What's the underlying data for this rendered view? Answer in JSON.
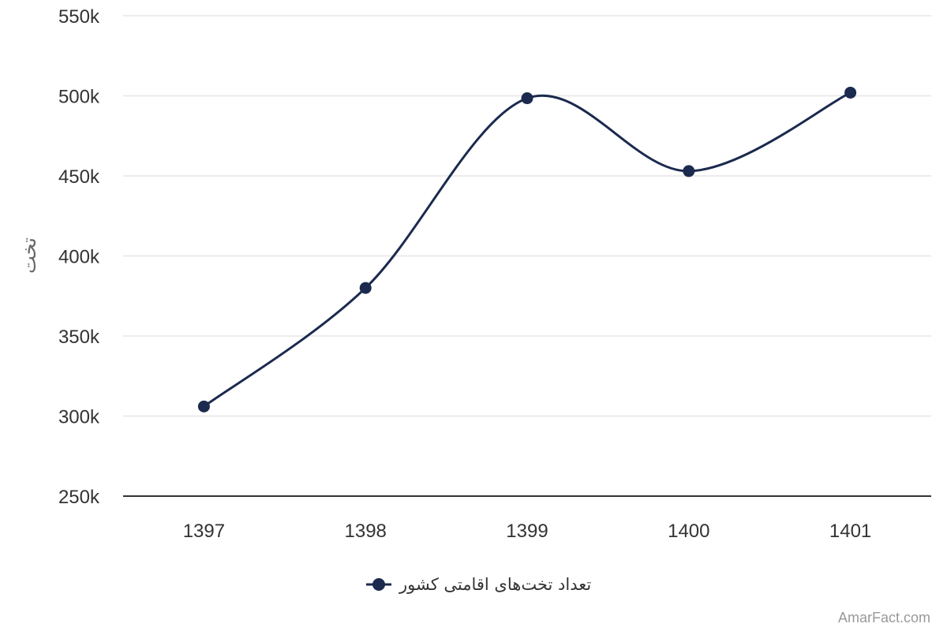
{
  "chart_data": {
    "type": "line",
    "smooth": true,
    "ylabel": "تخت",
    "categories": [
      "1397",
      "1398",
      "1399",
      "1400",
      "1401"
    ],
    "series": [
      {
        "name": "تعداد تخت‌های اقامتی کشور",
        "values": [
          306000,
          380000,
          498500,
          453000,
          502000
        ]
      }
    ],
    "ylim": [
      250000,
      550000
    ],
    "yticks": [
      250000,
      300000,
      350000,
      400000,
      450000,
      500000,
      550000
    ],
    "ytick_labels": [
      "250k",
      "300k",
      "350k",
      "400k",
      "450k",
      "500k",
      "550k"
    ],
    "grid": true,
    "legend_position": "bottom-center",
    "line_color": "#1b2a4e",
    "grid_color": "#e6e6e6"
  },
  "credit": "AmarFact.com"
}
